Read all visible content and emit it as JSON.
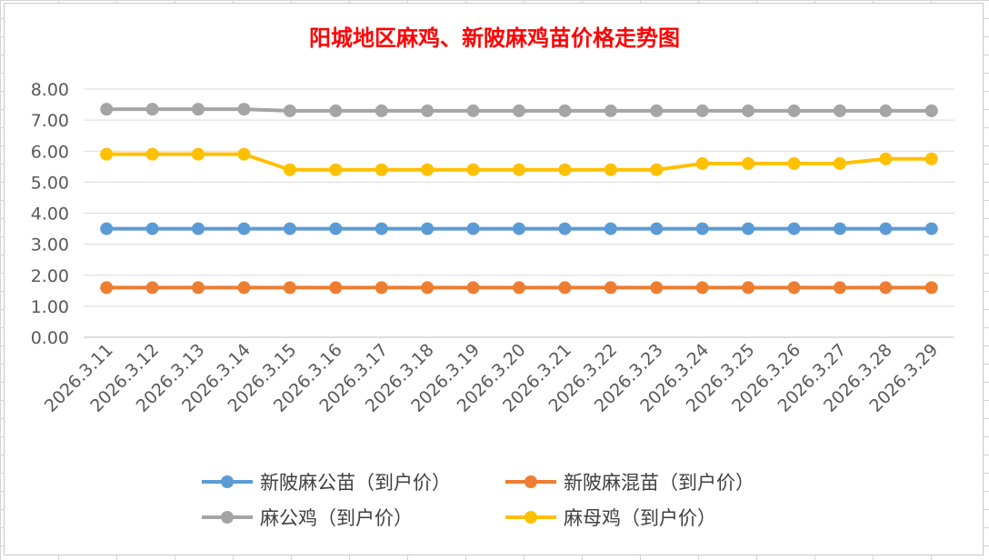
{
  "chart_data": {
    "type": "line",
    "title": "阳城地区麻鸡、新陂麻鸡苗价格走势图",
    "categories": [
      "2026.3.11",
      "2026.3.12",
      "2026.3.13",
      "2026.3.14",
      "2026.3.15",
      "2026.3.16",
      "2026.3.17",
      "2026.3.18",
      "2026.3.19",
      "2026.3.20",
      "2026.3.21",
      "2026.3.22",
      "2026.3.23",
      "2026.3.24",
      "2026.3.25",
      "2026.3.26",
      "2026.3.27",
      "2026.3.28",
      "2026.3.29"
    ],
    "ylim": [
      0,
      8
    ],
    "ytick_step": 1,
    "ytick_labels": [
      "0.00",
      "1.00",
      "2.00",
      "3.00",
      "4.00",
      "5.00",
      "6.00",
      "7.00",
      "8.00"
    ],
    "grid": true,
    "legend_position": "bottom",
    "series": [
      {
        "name": "新陂麻公苗（到户价）",
        "color": "#5b9bd5",
        "values": [
          3.5,
          3.5,
          3.5,
          3.5,
          3.5,
          3.5,
          3.5,
          3.5,
          3.5,
          3.5,
          3.5,
          3.5,
          3.5,
          3.5,
          3.5,
          3.5,
          3.5,
          3.5,
          3.5
        ]
      },
      {
        "name": "新陂麻混苗（到户价）",
        "color": "#ed7d31",
        "values": [
          1.6,
          1.6,
          1.6,
          1.6,
          1.6,
          1.6,
          1.6,
          1.6,
          1.6,
          1.6,
          1.6,
          1.6,
          1.6,
          1.6,
          1.6,
          1.6,
          1.6,
          1.6,
          1.6
        ]
      },
      {
        "name": "麻公鸡（到户价）",
        "color": "#a5a5a5",
        "values": [
          7.35,
          7.35,
          7.35,
          7.35,
          7.3,
          7.3,
          7.3,
          7.3,
          7.3,
          7.3,
          7.3,
          7.3,
          7.3,
          7.3,
          7.3,
          7.3,
          7.3,
          7.3,
          7.3
        ]
      },
      {
        "name": "麻母鸡（到户价）",
        "color": "#ffc000",
        "values": [
          5.9,
          5.9,
          5.9,
          5.9,
          5.4,
          5.4,
          5.4,
          5.4,
          5.4,
          5.4,
          5.4,
          5.4,
          5.4,
          5.6,
          5.6,
          5.6,
          5.6,
          5.75,
          5.75
        ]
      }
    ]
  }
}
